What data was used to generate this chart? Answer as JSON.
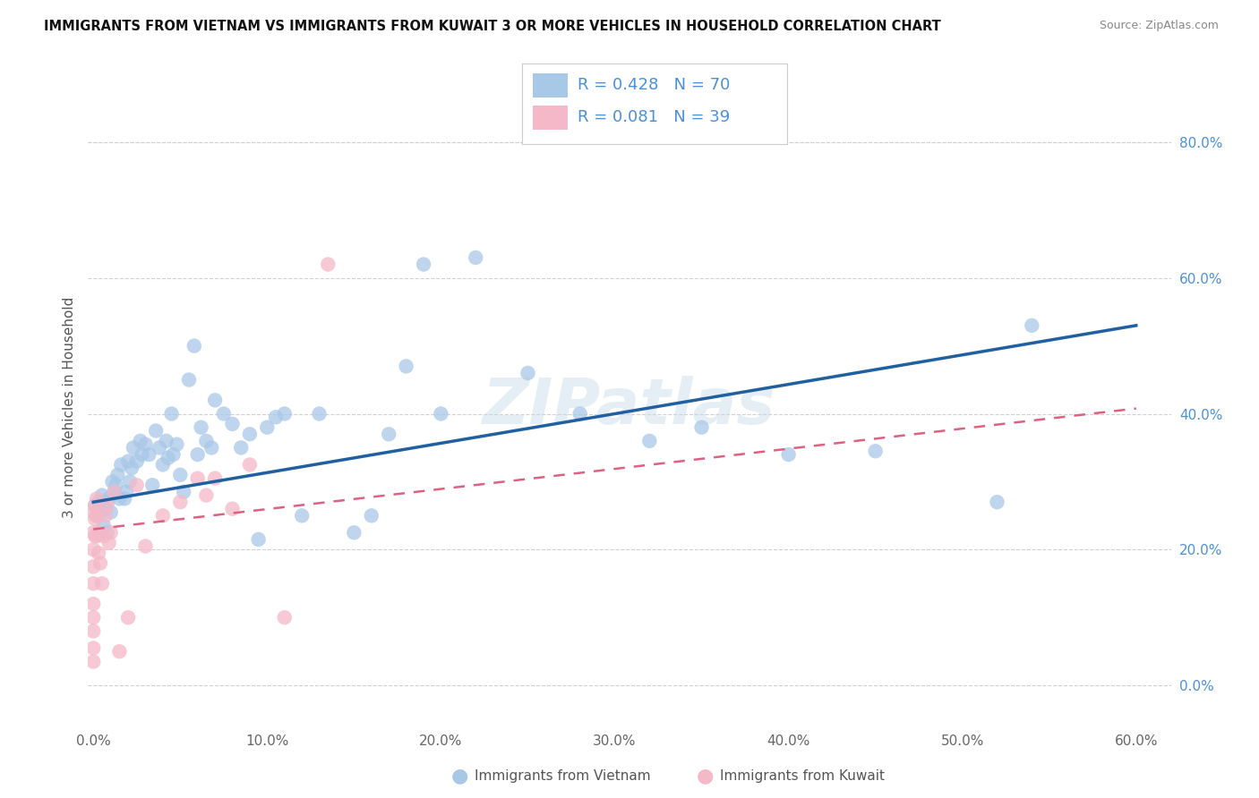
{
  "title": "IMMIGRANTS FROM VIETNAM VS IMMIGRANTS FROM KUWAIT 3 OR MORE VEHICLES IN HOUSEHOLD CORRELATION CHART",
  "source": "Source: ZipAtlas.com",
  "ylabel": "3 or more Vehicles in Household",
  "legend_vietnam": "Immigrants from Vietnam",
  "legend_kuwait": "Immigrants from Kuwait",
  "R_vietnam": 0.428,
  "N_vietnam": 70,
  "R_kuwait": 0.081,
  "N_kuwait": 39,
  "color_vietnam": "#a8c8e8",
  "color_kuwait": "#f4b8c8",
  "color_vietnam_line": "#2060a0",
  "color_kuwait_line": "#e06080",
  "color_right_axis": "#4a90d9",
  "xlim": [
    -0.003,
    0.62
  ],
  "ylim": [
    -0.06,
    0.88
  ],
  "xticks": [
    0.0,
    0.1,
    0.2,
    0.3,
    0.4,
    0.5,
    0.6
  ],
  "yticks_right": [
    0.0,
    0.2,
    0.4,
    0.6,
    0.8
  ],
  "vietnam_x": [
    0.001,
    0.002,
    0.003,
    0.004,
    0.005,
    0.006,
    0.007,
    0.008,
    0.009,
    0.01,
    0.011,
    0.012,
    0.013,
    0.014,
    0.015,
    0.016,
    0.018,
    0.019,
    0.02,
    0.021,
    0.022,
    0.023,
    0.025,
    0.027,
    0.028,
    0.03,
    0.032,
    0.034,
    0.036,
    0.038,
    0.04,
    0.042,
    0.043,
    0.045,
    0.046,
    0.048,
    0.05,
    0.052,
    0.055,
    0.058,
    0.06,
    0.062,
    0.065,
    0.068,
    0.07,
    0.075,
    0.08,
    0.085,
    0.09,
    0.095,
    0.1,
    0.105,
    0.11,
    0.12,
    0.13,
    0.15,
    0.16,
    0.17,
    0.18,
    0.19,
    0.2,
    0.22,
    0.25,
    0.28,
    0.32,
    0.35,
    0.4,
    0.45,
    0.52,
    0.54
  ],
  "vietnam_y": [
    0.265,
    0.25,
    0.27,
    0.255,
    0.28,
    0.235,
    0.26,
    0.225,
    0.275,
    0.255,
    0.3,
    0.285,
    0.295,
    0.31,
    0.275,
    0.325,
    0.275,
    0.285,
    0.33,
    0.3,
    0.32,
    0.35,
    0.33,
    0.36,
    0.34,
    0.355,
    0.34,
    0.295,
    0.375,
    0.35,
    0.325,
    0.36,
    0.335,
    0.4,
    0.34,
    0.355,
    0.31,
    0.285,
    0.45,
    0.5,
    0.34,
    0.38,
    0.36,
    0.35,
    0.42,
    0.4,
    0.385,
    0.35,
    0.37,
    0.215,
    0.38,
    0.395,
    0.4,
    0.25,
    0.4,
    0.225,
    0.25,
    0.37,
    0.47,
    0.62,
    0.4,
    0.63,
    0.46,
    0.4,
    0.36,
    0.38,
    0.34,
    0.345,
    0.27,
    0.53
  ],
  "kuwait_x": [
    0.0,
    0.0,
    0.0,
    0.0,
    0.0,
    0.0,
    0.0,
    0.0,
    0.0,
    0.0,
    0.001,
    0.001,
    0.001,
    0.002,
    0.002,
    0.002,
    0.003,
    0.003,
    0.004,
    0.005,
    0.006,
    0.007,
    0.008,
    0.009,
    0.01,
    0.012,
    0.015,
    0.02,
    0.025,
    0.03,
    0.04,
    0.05,
    0.06,
    0.065,
    0.07,
    0.08,
    0.09,
    0.11,
    0.135
  ],
  "kuwait_y": [
    0.255,
    0.225,
    0.2,
    0.175,
    0.15,
    0.12,
    0.1,
    0.08,
    0.055,
    0.035,
    0.265,
    0.245,
    0.22,
    0.275,
    0.25,
    0.22,
    0.225,
    0.195,
    0.18,
    0.15,
    0.22,
    0.25,
    0.265,
    0.21,
    0.225,
    0.285,
    0.05,
    0.1,
    0.295,
    0.205,
    0.25,
    0.27,
    0.305,
    0.28,
    0.305,
    0.26,
    0.325,
    0.1,
    0.62
  ],
  "vietnam_line_x0": 0.0,
  "vietnam_line_x1": 0.6,
  "vietnam_line_y0": 0.27,
  "vietnam_line_y1": 0.53,
  "kuwait_line_x0": 0.0,
  "kuwait_line_x1": 0.135,
  "kuwait_line_y0": 0.23,
  "kuwait_line_y1": 0.27
}
